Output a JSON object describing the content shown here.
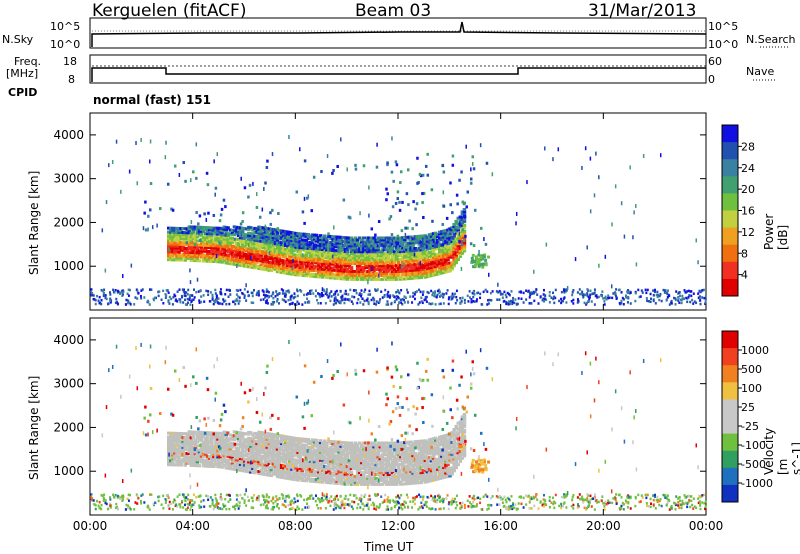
{
  "header": {
    "station": "Kerguelen (fitACF)",
    "beam": "Beam 03",
    "date": "31/Mar/2013"
  },
  "top_panels": {
    "nsky_label": "N.Sky",
    "nsky_ticks": [
      "10^5",
      "10^0"
    ],
    "nsearch_label": "N.Search",
    "nsearch_ticks": [
      "10^5",
      "10^0"
    ],
    "freq_label": "Freq.",
    "freq_unit": "[MHz]",
    "freq_ticks": [
      "18",
      "8"
    ],
    "nave_label": "Nave",
    "nave_ticks": [
      "60",
      "0"
    ],
    "cpid_label": "CPID",
    "cpid_text": "normal (fast) 151"
  },
  "colors": {
    "power_scale": [
      "#1010e0",
      "#2050b0",
      "#3a80a0",
      "#40a070",
      "#70c040",
      "#c0d040",
      "#f0a020",
      "#f07010",
      "#f03020",
      "#e00000"
    ],
    "velocity_scale": [
      "#1030c0",
      "#2070c0",
      "#30a060",
      "#70c040",
      "#c8c8c8",
      "#c8c8c8",
      "#f0c040",
      "#f08020",
      "#f04020",
      "#e00000"
    ],
    "gray": "#c0c0bc"
  },
  "chart_data": [
    {
      "type": "heatmap",
      "title": "Power",
      "xlabel": "Time UT",
      "ylabel": "Slant Range [km]",
      "x_ticks": [
        "00:00",
        "04:00",
        "08:00",
        "12:00",
        "16:00",
        "20:00",
        "00:00"
      ],
      "y_ticks": [
        "1000",
        "2000",
        "3000",
        "4000"
      ],
      "colorbar_label": "Power [dB]",
      "colorbar_ticks": [
        "4",
        "8",
        "12",
        "16",
        "20",
        "24",
        "28"
      ],
      "x": [
        3,
        4,
        5,
        6,
        7,
        8,
        9,
        10,
        11,
        12,
        13,
        14,
        14.5
      ],
      "y": [
        1400,
        1380,
        1350,
        1250,
        1150,
        1050,
        1000,
        950,
        950,
        950,
        1000,
        1150,
        1600
      ],
      "ylim": [
        0,
        4500
      ],
      "xlim": [
        0,
        24
      ]
    },
    {
      "type": "heatmap",
      "title": "Velocity",
      "xlabel": "Time UT",
      "ylabel": "Slant Range [km]",
      "x_ticks": [
        "00:00",
        "04:00",
        "08:00",
        "12:00",
        "16:00",
        "20:00",
        "00:00"
      ],
      "y_ticks": [
        "1000",
        "2000",
        "3000",
        "4000"
      ],
      "colorbar_label": "Velocity [m s^-1]",
      "colorbar_ticks": [
        "1000",
        "500",
        "100",
        "25",
        "-25",
        "-100",
        "-500",
        "-1000"
      ],
      "ylim": [
        0,
        4500
      ],
      "xlim": [
        0,
        24
      ]
    }
  ]
}
